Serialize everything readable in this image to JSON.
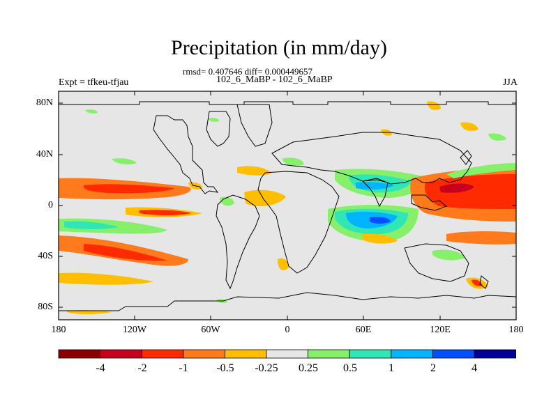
{
  "title": "Precipitation (in mm/day)",
  "stats": "rmsd= 0.407646 diff= 0.000449657",
  "cases": "102_6_MaBP - 102_6_MaBP",
  "expt": "Expt = tfkeu-tfjau",
  "season": "JJA",
  "lat_labels": [
    "80N",
    "40N",
    "0",
    "40S",
    "80S"
  ],
  "lon_labels": [
    "180",
    "120W",
    "60W",
    "0",
    "60E",
    "120E",
    "180"
  ],
  "colorbar": {
    "colors": [
      "#8b0000",
      "#c8001e",
      "#ff2a00",
      "#ff7a1a",
      "#ffbf00",
      "#e6e6e6",
      "#86f06a",
      "#2fe6b4",
      "#00b4ff",
      "#0050ff",
      "#000096"
    ],
    "labels": [
      "-4",
      "-2",
      "-1",
      "-0.5",
      "-0.25",
      "0.25",
      "0.5",
      "1",
      "2",
      "4"
    ]
  },
  "colors": {
    "background_field": "#e6e6e6",
    "coastline": "#000000"
  }
}
